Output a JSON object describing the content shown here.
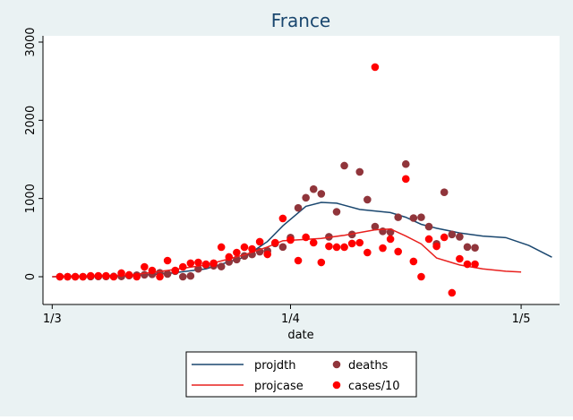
{
  "chart_data": {
    "type": "combo",
    "title": "France",
    "x_label": "date",
    "xlim": [
      -1.2,
      66
    ],
    "ylim": [
      -355,
      3080
    ],
    "xticks": [
      {
        "value": 0,
        "label": "1/3"
      },
      {
        "value": 31,
        "label": "1/4"
      },
      {
        "value": 61,
        "label": "1/5"
      }
    ],
    "yticks": [
      0,
      1000,
      2000,
      3000
    ],
    "grid": false,
    "legend": "bottom",
    "series": [
      {
        "name": "projdth",
        "type": "line",
        "color": "#1a476f",
        "x": [
          0,
          10,
          15,
          20,
          25,
          28,
          30,
          33,
          35,
          37,
          40,
          44,
          46,
          48,
          50,
          53,
          56,
          59,
          62,
          65
        ],
        "values": [
          0,
          10,
          40,
          100,
          250,
          450,
          650,
          900,
          950,
          940,
          860,
          820,
          760,
          670,
          620,
          560,
          520,
          500,
          400,
          250
        ]
      },
      {
        "name": "deaths",
        "type": "scatter",
        "color": "#90353b",
        "x": [
          1,
          2,
          3,
          4,
          5,
          6,
          7,
          8,
          9,
          10,
          11,
          12,
          13,
          14,
          15,
          16,
          17,
          18,
          19,
          20,
          21,
          22,
          23,
          24,
          25,
          26,
          27,
          28,
          29,
          30,
          31,
          32,
          33,
          34,
          35,
          36,
          37,
          38,
          39,
          40,
          41,
          42,
          43,
          44,
          45,
          46,
          47,
          48,
          49,
          50,
          51,
          52,
          53,
          54,
          55
        ],
        "values": [
          0,
          0,
          0,
          0,
          2,
          3,
          3,
          3,
          4,
          15,
          20,
          25,
          30,
          50,
          35,
          70,
          0,
          10,
          100,
          150,
          140,
          130,
          190,
          220,
          265,
          285,
          320,
          330,
          425,
          380,
          500,
          880,
          1010,
          1120,
          1060,
          510,
          830,
          1420,
          540,
          1340,
          985,
          640,
          580,
          570,
          760,
          1440,
          750,
          760,
          640,
          420,
          1080,
          540,
          510,
          380,
          370
        ]
      },
      {
        "name": "projcase",
        "type": "line",
        "color": "#e8201e",
        "x": [
          0,
          10,
          15,
          20,
          25,
          28,
          30,
          35,
          38,
          42,
          44,
          46,
          48,
          50,
          53,
          56,
          59,
          61
        ],
        "values": [
          0,
          20,
          80,
          150,
          280,
          380,
          460,
          490,
          530,
          600,
          610,
          520,
          420,
          240,
          150,
          100,
          70,
          60
        ]
      },
      {
        "name": "cases/10",
        "type": "scatter",
        "color": "#ff0000",
        "x": [
          1,
          2,
          3,
          4,
          5,
          6,
          7,
          8,
          9,
          10,
          11,
          12,
          13,
          14,
          15,
          16,
          17,
          18,
          19,
          20,
          21,
          22,
          23,
          24,
          25,
          26,
          27,
          28,
          29,
          30,
          31,
          32,
          33,
          34,
          35,
          36,
          37,
          38,
          39,
          40,
          41,
          42,
          43,
          44,
          45,
          46,
          47,
          48,
          49,
          50,
          51,
          52,
          53,
          54,
          55
        ],
        "values": [
          0,
          0,
          0,
          0,
          11,
          11,
          11,
          0,
          46,
          23,
          0,
          126,
          80,
          0,
          206,
          80,
          126,
          172,
          183,
          160,
          172,
          378,
          252,
          309,
          378,
          355,
          447,
          286,
          435,
          745,
          470,
          206,
          504,
          435,
          183,
          389,
          378,
          378,
          424,
          435,
          309,
          2680,
          366,
          481,
          321,
          1250,
          195,
          0,
          481,
          389,
          504,
          -206,
          229,
          160,
          160
        ]
      }
    ]
  }
}
